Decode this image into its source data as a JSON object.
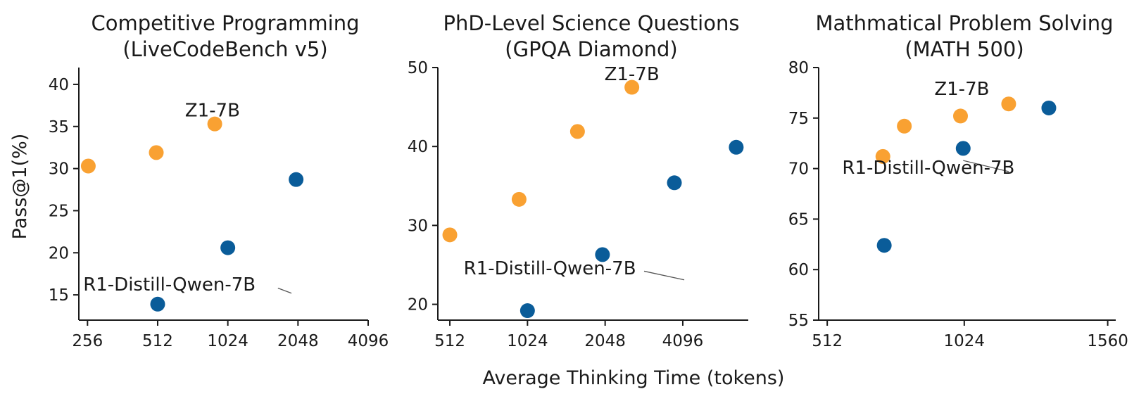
{
  "figure": {
    "ylabel": "Pass@1(%)",
    "xlabel": "Average Thinking Time (tokens)"
  },
  "colors": {
    "z1": "#F9A132",
    "r1": "#0A5C99"
  },
  "chart_data": [
    {
      "type": "scatter",
      "title_line1": "Competitive Programming",
      "title_line2": "(LiveCodeBench v5)",
      "x_scale": "log2",
      "xlim": [
        235,
        4096
      ],
      "ylim": [
        12,
        42
      ],
      "xticks": [
        256,
        512,
        1024,
        2048,
        4096
      ],
      "xtick_labels": [
        "256",
        "512",
        "1024",
        "2048",
        "4096"
      ],
      "yticks": [
        15,
        20,
        25,
        30,
        35,
        40
      ],
      "ytick_labels": [
        "15",
        "20",
        "25",
        "30",
        "35",
        "40"
      ],
      "series": [
        {
          "key": "z1",
          "x": [
            258,
            505,
            900
          ],
          "y": [
            30.3,
            31.9,
            35.3
          ]
        },
        {
          "key": "r1",
          "x": [
            512,
            1024,
            2010
          ],
          "y": [
            13.9,
            20.6,
            28.7
          ]
        }
      ],
      "annotations": [
        {
          "text": "Z1-7B",
          "x": 880,
          "y": 36.2
        },
        {
          "text": "R1-Distill-Qwen-7B",
          "x": 575,
          "y": 15.5,
          "line_to": [
            1680,
            15.8,
            1920,
            15.2
          ]
        }
      ]
    },
    {
      "type": "scatter",
      "title_line1": "PhD-Level Science Questions",
      "title_line2": "(GPQA Diamond)",
      "x_scale": "log2",
      "xlim": [
        460,
        7350
      ],
      "ylim": [
        18,
        50
      ],
      "xticks": [
        512,
        1024,
        2048,
        4096
      ],
      "xtick_labels": [
        "512",
        "1024",
        "2048",
        "4096"
      ],
      "yticks": [
        20,
        30,
        40,
        50
      ],
      "ytick_labels": [
        "20",
        "30",
        "40",
        "50"
      ],
      "series": [
        {
          "key": "z1",
          "x": [
            512,
            950,
            1600,
            2600
          ],
          "y": [
            28.8,
            33.3,
            41.9,
            47.5
          ]
        },
        {
          "key": "r1",
          "x": [
            1024,
            2000,
            3800,
            6600
          ],
          "y": [
            19.2,
            26.3,
            35.4,
            39.9
          ]
        }
      ],
      "annotations": [
        {
          "text": "Z1-7B",
          "x": 2600,
          "y": 48.4
        },
        {
          "text": "R1-Distill-Qwen-7B",
          "x": 1250,
          "y": 23.8,
          "line_to": [
            2900,
            24.2,
            4150,
            23.1
          ]
        }
      ]
    },
    {
      "type": "scatter",
      "title_line1": "Mathmatical Problem Solving",
      "title_line2": "(MATH 500)",
      "x_scale": "linear",
      "xlim": [
        480,
        1590
      ],
      "ylim": [
        55,
        80
      ],
      "xticks": [
        512,
        1024,
        1560
      ],
      "xtick_labels": [
        "512",
        "1024",
        "1560"
      ],
      "yticks": [
        55,
        60,
        65,
        70,
        75,
        80
      ],
      "ytick_labels": [
        "55",
        "60",
        "65",
        "70",
        "75",
        "80"
      ],
      "series": [
        {
          "key": "z1",
          "x": [
            720,
            800,
            1010,
            1190
          ],
          "y": [
            71.2,
            74.2,
            75.2,
            76.4
          ]
        },
        {
          "key": "r1",
          "x": [
            725,
            1020,
            1340
          ],
          "y": [
            62.4,
            72.0,
            76.0
          ]
        }
      ],
      "annotations": [
        {
          "text": "Z1-7B",
          "x": 1015,
          "y": 77.3
        },
        {
          "text": "R1-Distill-Qwen-7B",
          "x": 890,
          "y": 69.5,
          "line_to": [
            1020,
            70.8,
            1190,
            69.7
          ]
        }
      ]
    }
  ]
}
